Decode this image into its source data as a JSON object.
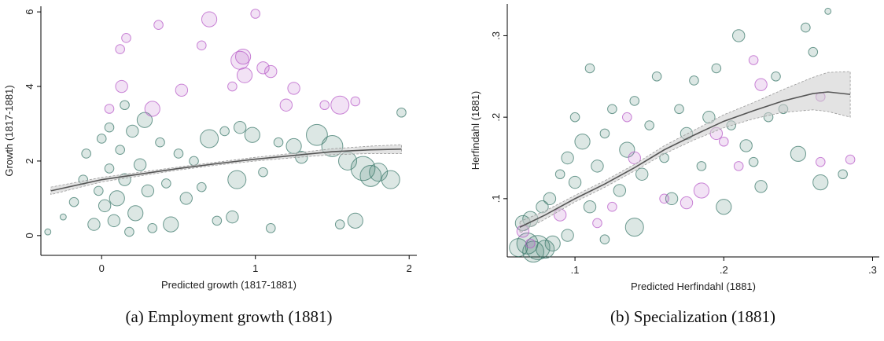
{
  "chart_data": [
    {
      "type": "scatter",
      "caption": "(a) Employment growth (1881)",
      "xlabel": "Predicted growth (1817-1881)",
      "ylabel": "Growth (1817-1881)",
      "xlim": [
        -0.395,
        2.05
      ],
      "ylim": [
        -0.53,
        6.15
      ],
      "xticks": [
        0,
        1,
        2
      ],
      "yticks": [
        0,
        2,
        4,
        6
      ],
      "series": [
        {
          "color": "#3d7a6c",
          "x": [
            -0.35,
            -0.25,
            -0.18,
            -0.12,
            -0.1,
            -0.05,
            -0.02,
            0,
            0.02,
            0.05,
            0.05,
            0.08,
            0.1,
            0.12,
            0.15,
            0.18,
            0.2,
            0.22,
            0.25,
            0.28,
            0.3,
            0.33,
            0.38,
            0.42,
            0.45,
            0.5,
            0.55,
            0.6,
            0.65,
            0.7,
            0.75,
            0.8,
            0.85,
            0.88,
            0.9,
            0.98,
            1.05,
            1.1,
            1.15,
            1.25,
            1.3,
            1.4,
            1.5,
            1.55,
            1.6,
            1.65,
            1.7,
            1.75,
            1.8,
            1.88,
            1.95,
            0.15
          ],
          "values": [
            0.1,
            0.5,
            0.9,
            1.5,
            2.2,
            0.3,
            1.2,
            2.6,
            0.8,
            1.8,
            2.9,
            0.4,
            1.0,
            2.3,
            1.5,
            0.1,
            2.8,
            0.6,
            1.9,
            3.1,
            1.2,
            0.2,
            2.5,
            1.4,
            0.3,
            2.2,
            1.0,
            2.0,
            1.3,
            2.6,
            0.4,
            2.8,
            0.5,
            1.5,
            2.9,
            2.7,
            1.7,
            0.2,
            2.5,
            2.4,
            2.1,
            2.7,
            2.4,
            0.3,
            2.0,
            0.4,
            1.8,
            1.6,
            1.7,
            1.5,
            3.3,
            3.5
          ],
          "sizes": [
            1,
            1,
            2,
            2,
            2,
            3,
            2,
            2,
            3,
            2,
            2,
            3,
            4,
            2,
            3,
            2,
            3,
            4,
            3,
            4,
            3,
            2,
            2,
            2,
            4,
            2,
            3,
            2,
            2,
            5,
            2,
            2,
            3,
            5,
            3,
            4,
            2,
            2,
            2,
            4,
            3,
            6,
            6,
            2,
            5,
            4,
            7,
            6,
            5,
            5,
            2,
            2
          ]
        },
        {
          "color": "#b85cc8",
          "x": [
            0.12,
            0.16,
            0.37,
            0.65,
            0.7,
            1.0,
            0.9,
            0.92,
            0.93,
            1.05,
            1.1,
            0.13,
            0.33,
            0.52,
            0.85,
            1.2,
            1.25,
            1.55,
            1.65,
            0.05,
            1.45
          ],
          "values": [
            5.0,
            5.3,
            5.65,
            5.1,
            5.8,
            5.95,
            4.7,
            4.8,
            4.3,
            4.5,
            4.4,
            4.0,
            3.4,
            3.9,
            4.0,
            3.5,
            3.95,
            3.5,
            3.6,
            3.4,
            3.5
          ],
          "sizes": [
            2,
            2,
            2,
            2,
            4,
            2,
            5,
            4,
            4,
            3,
            3,
            3,
            4,
            3,
            2,
            3,
            3,
            5,
            2,
            2,
            2
          ]
        }
      ],
      "fit": {
        "color": "#555555",
        "band_color": "#cccccc",
        "x": [
          -0.33,
          0,
          0.25,
          0.5,
          0.75,
          1,
          1.25,
          1.5,
          1.75,
          1.95
        ],
        "values": [
          1.2,
          1.5,
          1.65,
          1.8,
          1.93,
          2.05,
          2.15,
          2.25,
          2.3,
          2.32
        ],
        "lower": [
          1.1,
          1.44,
          1.6,
          1.76,
          1.89,
          2.0,
          2.09,
          2.17,
          2.2,
          2.2
        ],
        "upper": [
          1.3,
          1.56,
          1.7,
          1.84,
          1.97,
          2.1,
          2.21,
          2.33,
          2.4,
          2.44
        ]
      }
    },
    {
      "type": "scatter",
      "caption": "(b) Specialization (1881)",
      "xlabel": "Predicted Herfindahl (1881)",
      "ylabel": "Herfindahl (1881)",
      "xlim": [
        0.0545,
        0.3045
      ],
      "ylim": [
        0.0285,
        0.339
      ],
      "xticks": [
        {
          "value": 0.1,
          "label": ".1"
        },
        {
          "value": 0.2,
          "label": ".2"
        },
        {
          "value": 0.3,
          "label": ".3"
        }
      ],
      "yticks": [
        {
          "value": 0.1,
          "label": ".1"
        },
        {
          "value": 0.2,
          "label": ".2"
        },
        {
          "value": 0.3,
          "label": ".3"
        }
      ],
      "series": [
        {
          "color": "#3d7a6c",
          "x": [
            0.062,
            0.068,
            0.072,
            0.075,
            0.08,
            0.085,
            0.065,
            0.07,
            0.078,
            0.083,
            0.09,
            0.095,
            0.1,
            0.1,
            0.105,
            0.11,
            0.11,
            0.115,
            0.12,
            0.125,
            0.13,
            0.135,
            0.14,
            0.14,
            0.145,
            0.15,
            0.155,
            0.16,
            0.165,
            0.17,
            0.175,
            0.18,
            0.185,
            0.19,
            0.195,
            0.2,
            0.205,
            0.21,
            0.215,
            0.22,
            0.225,
            0.23,
            0.235,
            0.24,
            0.25,
            0.255,
            0.26,
            0.265,
            0.27,
            0.28,
            0.095,
            0.12
          ],
          "values": [
            0.04,
            0.045,
            0.035,
            0.04,
            0.038,
            0.045,
            0.07,
            0.075,
            0.09,
            0.1,
            0.13,
            0.15,
            0.12,
            0.2,
            0.17,
            0.09,
            0.26,
            0.14,
            0.18,
            0.21,
            0.11,
            0.16,
            0.22,
            0.065,
            0.13,
            0.19,
            0.25,
            0.15,
            0.1,
            0.21,
            0.18,
            0.245,
            0.14,
            0.2,
            0.26,
            0.09,
            0.19,
            0.3,
            0.165,
            0.145,
            0.115,
            0.2,
            0.25,
            0.21,
            0.155,
            0.31,
            0.28,
            0.12,
            0.33,
            0.13,
            0.055,
            0.05
          ],
          "sizes": [
            5,
            6,
            6,
            7,
            5,
            4,
            4,
            4,
            3,
            3,
            2,
            3,
            3,
            2,
            4,
            3,
            2,
            3,
            2,
            2,
            3,
            4,
            2,
            5,
            3,
            2,
            2,
            2,
            3,
            2,
            3,
            2,
            2,
            3,
            2,
            4,
            2,
            3,
            3,
            2,
            3,
            2,
            2,
            2,
            4,
            2,
            2,
            4,
            1,
            2,
            3,
            2
          ]
        },
        {
          "color": "#b85cc8",
          "x": [
            0.065,
            0.07,
            0.09,
            0.115,
            0.125,
            0.135,
            0.14,
            0.16,
            0.175,
            0.185,
            0.195,
            0.21,
            0.22,
            0.225,
            0.265,
            0.265,
            0.285,
            0.2
          ],
          "values": [
            0.06,
            0.045,
            0.08,
            0.07,
            0.09,
            0.2,
            0.15,
            0.1,
            0.095,
            0.11,
            0.18,
            0.14,
            0.27,
            0.24,
            0.225,
            0.145,
            0.148,
            0.17
          ],
          "sizes": [
            3,
            2,
            3,
            2,
            2,
            2,
            3,
            2,
            3,
            4,
            3,
            2,
            2,
            3,
            2,
            2,
            2,
            2
          ]
        }
      ],
      "fit": {
        "color": "#555555",
        "band_color": "#cccccc",
        "x": [
          0.063,
          0.08,
          0.1,
          0.12,
          0.14,
          0.16,
          0.18,
          0.2,
          0.22,
          0.24,
          0.26,
          0.27,
          0.285
        ],
        "values": [
          0.065,
          0.08,
          0.1,
          0.118,
          0.138,
          0.16,
          0.178,
          0.195,
          0.208,
          0.22,
          0.229,
          0.231,
          0.228
        ],
        "lower": [
          0.058,
          0.075,
          0.096,
          0.114,
          0.134,
          0.155,
          0.172,
          0.187,
          0.198,
          0.206,
          0.209,
          0.207,
          0.2
        ],
        "upper": [
          0.072,
          0.085,
          0.104,
          0.122,
          0.142,
          0.165,
          0.184,
          0.203,
          0.218,
          0.234,
          0.249,
          0.255,
          0.256
        ]
      }
    }
  ]
}
